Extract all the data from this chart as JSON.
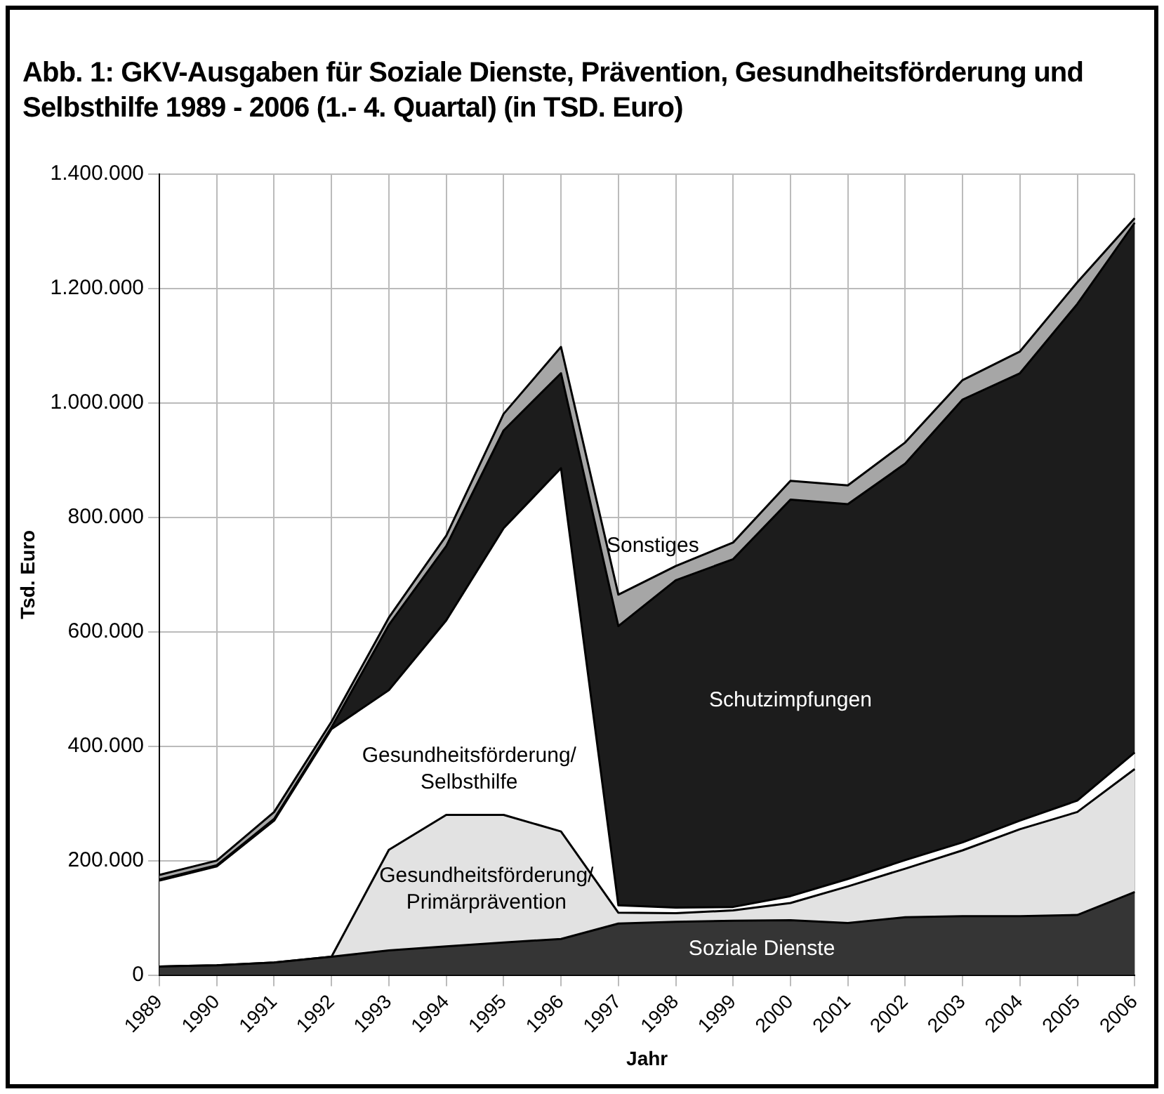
{
  "chart_data": {
    "type": "area",
    "title": "Abb. 1: GKV-Ausgaben für Soziale Dienste, Prävention, Gesundheitsförderung und Selbsthilfe 1989 - 2006 (1.- 4. Quartal) (in TSD. Euro)",
    "xlabel": "Jahr",
    "ylabel": "Tsd. Euro",
    "categories": [
      "1989",
      "1990",
      "1991",
      "1992",
      "1993",
      "1994",
      "1995",
      "1996",
      "1997",
      "1998",
      "1999",
      "2000",
      "2001",
      "2002",
      "2003",
      "2004",
      "2005",
      "2006"
    ],
    "stacked": true,
    "grid": true,
    "legend": false,
    "ylim": [
      0,
      1400000
    ],
    "yticks": [
      {
        "value": 0,
        "label": "0"
      },
      {
        "value": 200000,
        "label": "200.000"
      },
      {
        "value": 400000,
        "label": "400.000"
      },
      {
        "value": 600000,
        "label": "600.000"
      },
      {
        "value": 800000,
        "label": "800.000"
      },
      {
        "value": 1000000,
        "label": "1.000.000"
      },
      {
        "value": 1200000,
        "label": "1.200.000"
      },
      {
        "value": 1400000,
        "label": "1.400.000"
      }
    ],
    "series": [
      {
        "name": "Soziale Dienste",
        "color": "#353535",
        "values": [
          15000,
          17000,
          22000,
          32000,
          43000,
          50000,
          57000,
          63000,
          90000,
          93000,
          95000,
          96000,
          91000,
          101000,
          103000,
          103000,
          105000,
          145000
        ]
      },
      {
        "name": "Gesundheitsförderung/Primärprävention",
        "color": "#e2e2e2",
        "values": [
          0,
          0,
          0,
          0,
          176000,
          230000,
          223000,
          188000,
          19000,
          15000,
          18000,
          30000,
          64000,
          85000,
          115000,
          152000,
          180000,
          215000
        ]
      },
      {
        "name": "Gesundheitsförderung/Selbsthilfe",
        "color": "#ffffff",
        "values": [
          150000,
          173000,
          248000,
          398000,
          279000,
          340000,
          501000,
          635000,
          13000,
          10000,
          6000,
          12000,
          13000,
          15000,
          14000,
          15000,
          20000,
          29000
        ]
      },
      {
        "name": "Schutzimpfungen",
        "color": "#1c1c1c",
        "values": [
          2000,
          2000,
          3000,
          3000,
          114000,
          130000,
          171000,
          166000,
          488000,
          572000,
          608000,
          693000,
          655000,
          693000,
          774000,
          782000,
          868000,
          926000
        ]
      },
      {
        "name": "Sonstiges",
        "color": "#a6a6a6",
        "values": [
          8000,
          8000,
          12000,
          10000,
          13000,
          18000,
          29000,
          46000,
          55000,
          25000,
          29000,
          33000,
          33000,
          37000,
          34000,
          38000,
          38000,
          8000
        ]
      }
    ]
  }
}
